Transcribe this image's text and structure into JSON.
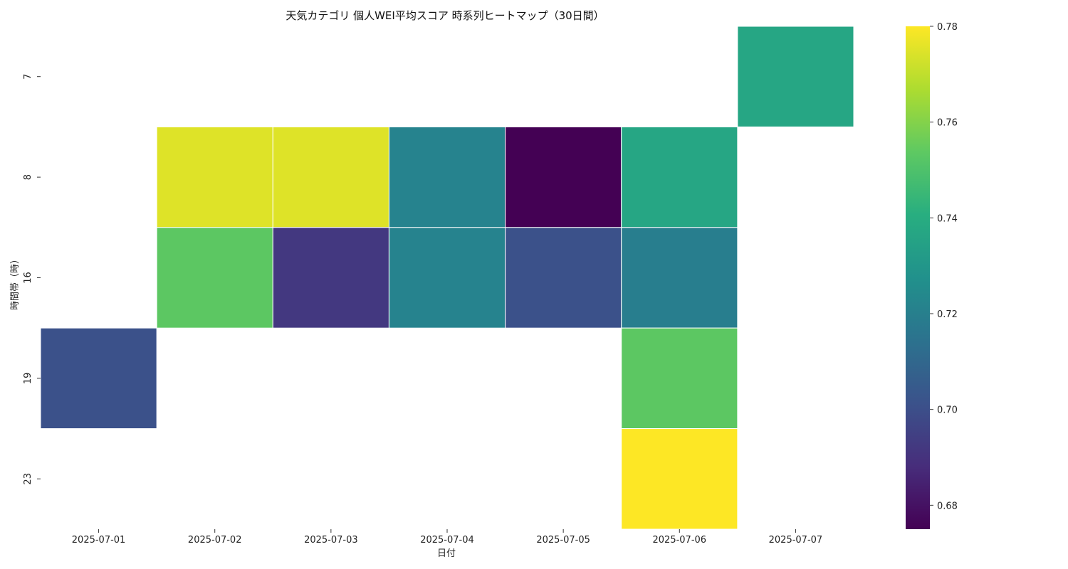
{
  "chart_data": {
    "type": "heatmap",
    "title": "天気カテゴリ 個人WEI平均スコア 時系列ヒートマップ（30日間）",
    "xlabel": "日付",
    "ylabel": "時間帯（時）",
    "x_categories": [
      "2025-07-01",
      "2025-07-02",
      "2025-07-03",
      "2025-07-04",
      "2025-07-05",
      "2025-07-06",
      "2025-07-07"
    ],
    "y_categories": [
      "7",
      "8",
      "16",
      "19",
      "23"
    ],
    "values": [
      [
        null,
        null,
        null,
        null,
        null,
        null,
        0.737
      ],
      [
        null,
        0.775,
        0.775,
        0.722,
        0.675,
        0.737,
        null
      ],
      [
        null,
        0.753,
        0.692,
        0.722,
        0.701,
        0.72,
        null
      ],
      [
        0.701,
        null,
        null,
        null,
        null,
        0.753,
        null
      ],
      [
        null,
        null,
        null,
        null,
        null,
        0.78,
        null
      ]
    ],
    "colormap": "viridis",
    "colorbar": {
      "min": 0.675,
      "max": 0.78,
      "ticks": [
        "0.68",
        "0.70",
        "0.72",
        "0.74",
        "0.76",
        "0.78"
      ]
    }
  }
}
